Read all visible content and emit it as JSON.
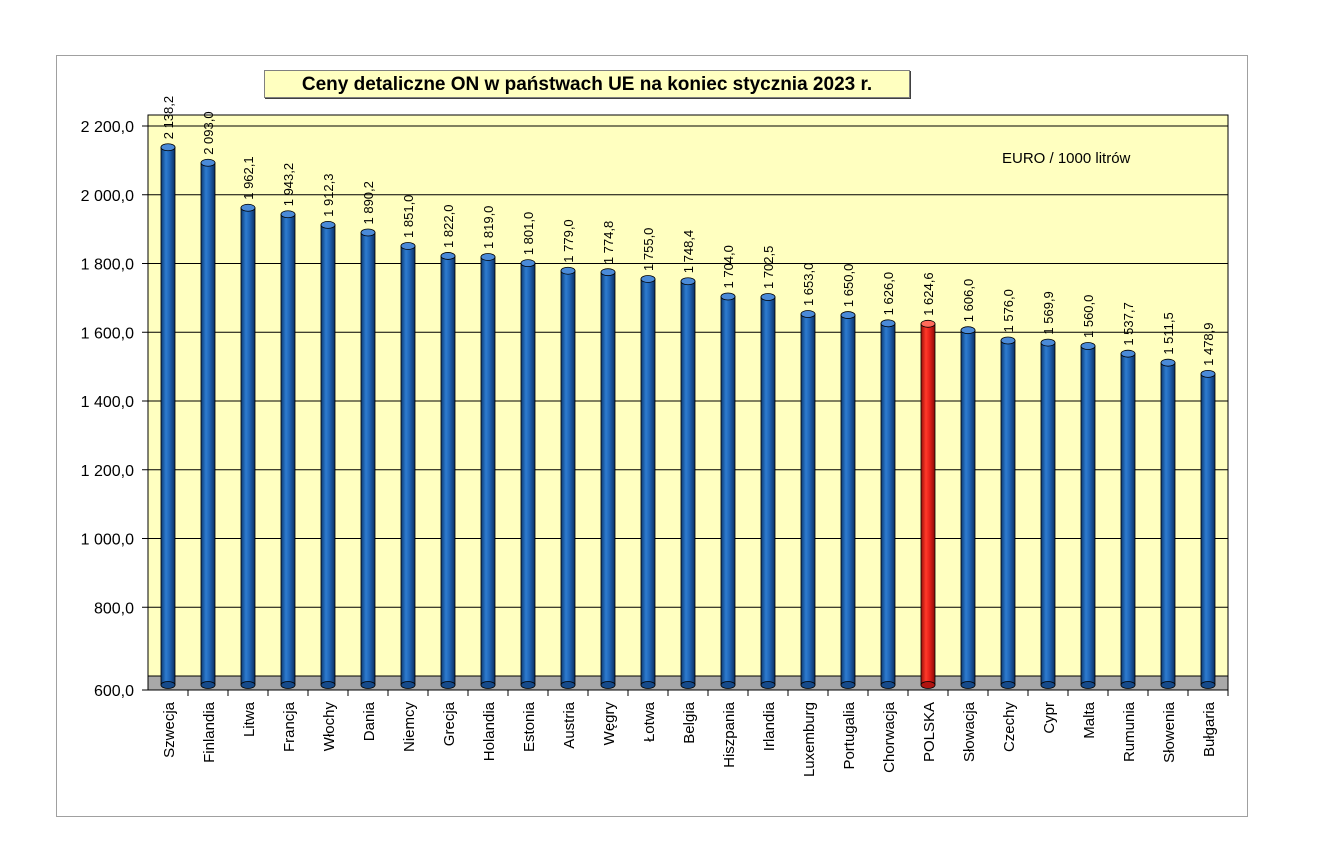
{
  "chart_data": {
    "type": "bar",
    "title": "Ceny detaliczne ON w państwach UE na koniec stycznia 2023 r.",
    "unit_label": "EURO / 1000 litrów",
    "xlabel": "",
    "ylabel": "",
    "ylim": [
      600,
      2200
    ],
    "yticks": [
      "600,0",
      "800,0",
      "1 000,0",
      "1 200,0",
      "1 400,0",
      "1 600,0",
      "1 800,0",
      "2 000,0",
      "2 200,0"
    ],
    "ytick_values": [
      600,
      800,
      1000,
      1200,
      1400,
      1600,
      1800,
      2000,
      2200
    ],
    "grid": true,
    "categories": [
      "Szwecja",
      "Finlandia",
      "Litwa",
      "Francja",
      "Włochy",
      "Dania",
      "Niemcy",
      "Grecja",
      "Holandia",
      "Estonia",
      "Austria",
      "Węgry",
      "Łotwa",
      "Belgia",
      "Hiszpania",
      "Irlandia",
      "Luxemburg",
      "Portugalia",
      "Chorwacja",
      "POLSKA",
      "Słowacja",
      "Czechy",
      "Cypr",
      "Malta",
      "Rumunia",
      "Słowenia",
      "Bułgaria"
    ],
    "values": [
      2138.2,
      2093.0,
      1962.1,
      1943.2,
      1912.3,
      1890.2,
      1851.0,
      1822.0,
      1819.0,
      1801.0,
      1779.0,
      1774.8,
      1755.0,
      1748.4,
      1704.0,
      1702.5,
      1653.0,
      1650.0,
      1626.0,
      1624.6,
      1606.0,
      1576.0,
      1569.9,
      1560.0,
      1537.7,
      1511.5,
      1478.9
    ],
    "value_labels": [
      "2 138,2",
      "2 093,0",
      "1 962,1",
      "1 943,2",
      "1 912,3",
      "1 890,2",
      "1 851,0",
      "1 822,0",
      "1 819,0",
      "1 801,0",
      "1 779,0",
      "1 774,8",
      "1 755,0",
      "1 748,4",
      "1 704,0",
      "1 702,5",
      "1 653,0",
      "1 650,0",
      "1 626,0",
      "1 624,6",
      "1 606,0",
      "1 576,0",
      "1 569,9",
      "1 560,0",
      "1 537,7",
      "1 511,5",
      "1 478,9"
    ],
    "highlight_index": 19,
    "colors": {
      "bar": "#1f5fa8",
      "bar_highlight": "#e8201a",
      "plot_background": "#ffffc0",
      "gridline": "#000000"
    }
  }
}
